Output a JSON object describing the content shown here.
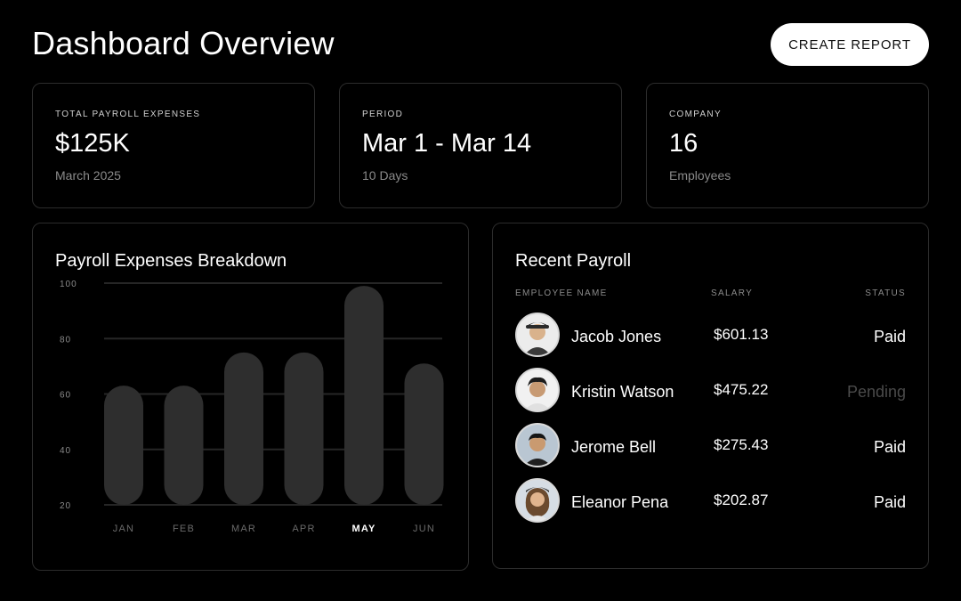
{
  "header": {
    "title": "Dashboard Overview",
    "create_button": "CREATE REPORT"
  },
  "stats": [
    {
      "label": "TOTAL PAYROLL EXPENSES",
      "value": "$125K",
      "sub": "March 2025"
    },
    {
      "label": "PERIOD",
      "value": "Mar 1 - Mar 14",
      "sub": "10 Days"
    },
    {
      "label": "COMPANY",
      "value": "16",
      "sub": "Employees"
    }
  ],
  "chart_card": {
    "title": "Payroll Expenses Breakdown"
  },
  "chart_data": {
    "type": "bar",
    "title": "Payroll Expenses Breakdown",
    "categories": [
      "JAN",
      "FEB",
      "MAR",
      "APR",
      "MAY",
      "JUN"
    ],
    "values": [
      63,
      63,
      75,
      75,
      99,
      71
    ],
    "highlight": "MAY",
    "yticks": [
      100,
      80,
      60,
      40,
      20
    ],
    "ylim": [
      20,
      100
    ],
    "xlabel": "",
    "ylabel": "",
    "grid": true
  },
  "payroll": {
    "title": "Recent Payroll",
    "columns": {
      "name": "EMPLOYEE NAME",
      "salary": "SALARY",
      "status": "STATUS"
    },
    "rows": [
      {
        "name": "Jacob Jones",
        "salary": "$601.13",
        "status": "Paid",
        "pending": false
      },
      {
        "name": "Kristin Watson",
        "salary": "$475.22",
        "status": "Pending",
        "pending": true
      },
      {
        "name": "Jerome Bell",
        "salary": "$275.43",
        "status": "Paid",
        "pending": false
      },
      {
        "name": "Eleanor Pena",
        "salary": "$202.87",
        "status": "Paid",
        "pending": false
      }
    ]
  },
  "colors": {
    "background": "#000000",
    "card_border": "#2c2c2c",
    "bar": "#2e2e2e",
    "grid": "#262626",
    "pending_text": "#4a4a4a"
  }
}
